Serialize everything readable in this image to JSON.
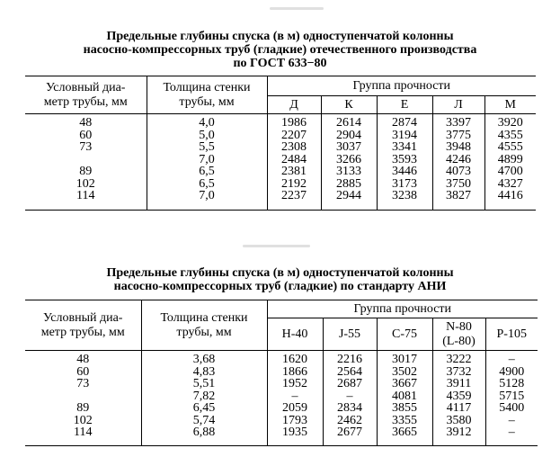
{
  "table1": {
    "title_lines": [
      "Предельные глубины спуска (в м) одноступенчатой колонны",
      "насосно-компрессорных труб (гладкие) отечественного производства",
      "по ГОСТ 633−80"
    ],
    "header": {
      "diameter": [
        "Условный диа-",
        "метр трубы, мм"
      ],
      "wall": [
        "Толщина стенки",
        "трубы, мм"
      ],
      "group": "Группа прочности",
      "grades": [
        "Д",
        "К",
        "Е",
        "Л",
        "М"
      ]
    },
    "rows": [
      {
        "d": "48",
        "w": "4,0",
        "v": [
          "1986",
          "2614",
          "2874",
          "3397",
          "3920"
        ]
      },
      {
        "d": "60",
        "w": "5,0",
        "v": [
          "2207",
          "2904",
          "3194",
          "3775",
          "4355"
        ]
      },
      {
        "d": "73",
        "w": "5,5",
        "v": [
          "2308",
          "3037",
          "3341",
          "3948",
          "4555"
        ]
      },
      {
        "d": "",
        "w": "7,0",
        "v": [
          "2484",
          "3266",
          "3593",
          "4246",
          "4899"
        ]
      },
      {
        "d": "89",
        "w": "6,5",
        "v": [
          "2381",
          "3133",
          "3446",
          "4073",
          "4700"
        ]
      },
      {
        "d": "102",
        "w": "6,5",
        "v": [
          "2192",
          "2885",
          "3173",
          "3750",
          "4327"
        ]
      },
      {
        "d": "114",
        "w": "7,0",
        "v": [
          "2237",
          "2944",
          "3238",
          "3827",
          "4416"
        ]
      }
    ]
  },
  "table2": {
    "title_lines": [
      "Предельные глубины спуска (в м) одноступенчатой колонны",
      "насосно-компрессорных труб (гладкие) по стандарту АНИ"
    ],
    "header": {
      "diameter": [
        "Условный диа-",
        "метр трубы, мм"
      ],
      "wall": [
        "Толщина стенки",
        "трубы, мм"
      ],
      "group": "Группа прочности",
      "grades": [
        [
          "H-40"
        ],
        [
          "J-55"
        ],
        [
          "C-75"
        ],
        [
          "N-80",
          "(L-80)"
        ],
        [
          "P-105"
        ]
      ]
    },
    "rows": [
      {
        "d": "48",
        "w": "3,68",
        "v": [
          "1620",
          "2216",
          "3017",
          "3222",
          "–"
        ]
      },
      {
        "d": "60",
        "w": "4,83",
        "v": [
          "1866",
          "2564",
          "3502",
          "3732",
          "4900"
        ]
      },
      {
        "d": "73",
        "w": "5,51",
        "v": [
          "1952",
          "2687",
          "3667",
          "3911",
          "5128"
        ]
      },
      {
        "d": "",
        "w": "7,82",
        "v": [
          "–",
          "–",
          "4081",
          "4359",
          "5715"
        ]
      },
      {
        "d": "89",
        "w": "6,45",
        "v": [
          "2059",
          "2834",
          "3855",
          "4117",
          "5400"
        ]
      },
      {
        "d": "102",
        "w": "5,74",
        "v": [
          "1793",
          "2462",
          "3355",
          "3580",
          "–"
        ]
      },
      {
        "d": "114",
        "w": "6,88",
        "v": [
          "1935",
          "2677",
          "3665",
          "3912",
          "–"
        ]
      }
    ]
  }
}
